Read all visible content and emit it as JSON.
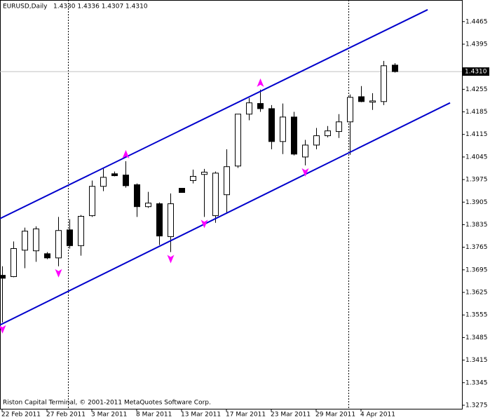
{
  "chart_data": {
    "type": "candlestick",
    "symbol": "EURUSD,Daily",
    "info": "1.4330 1.4336 1.4307 1.4310",
    "footer": "Riston Capital Terminal, © 2001-2011 MetaQuotes Software Corp.",
    "categories": [
      "22 Feb 2011",
      null,
      null,
      null,
      "27 Feb 2011",
      null,
      null,
      null,
      "3 Mar 2011",
      null,
      null,
      null,
      "8 Mar 2011",
      null,
      null,
      null,
      "13 Mar 2011",
      null,
      null,
      null,
      "17 Mar 2011",
      null,
      null,
      null,
      "23 Mar 2011",
      null,
      null,
      null,
      "29 Mar 2011",
      null,
      null,
      null,
      "4 Apr 2011",
      null,
      null,
      null
    ],
    "open": [
      1.3678,
      1.3674,
      1.3756,
      1.3754,
      1.3745,
      1.3732,
      1.3819,
      1.377,
      1.3863,
      1.3954,
      1.3993,
      1.3989,
      1.3959,
      1.3891,
      1.39,
      1.3798,
      1.3948,
      1.3972,
      1.3991,
      1.3863,
      1.3928,
      1.4017,
      1.4178,
      1.4211,
      1.4195,
      1.4093,
      1.4169,
      1.4045,
      1.4082,
      1.4111,
      1.4124,
      1.4154,
      1.4232,
      1.4215,
      1.4217,
      1.433
    ],
    "high": [
      1.3706,
      1.3783,
      1.3826,
      1.383,
      1.375,
      1.3859,
      1.3852,
      1.3865,
      1.3972,
      1.4011,
      1.4,
      1.4032,
      1.3963,
      1.3937,
      1.3904,
      1.3932,
      1.3948,
      1.4006,
      1.4008,
      1.4,
      1.4069,
      1.4178,
      1.4228,
      1.4254,
      1.4206,
      1.4211,
      1.4185,
      1.4098,
      1.4135,
      1.4141,
      1.4178,
      1.4239,
      1.4265,
      1.4243,
      1.4343,
      1.4336
    ],
    "low": [
      1.3532,
      1.3672,
      1.37,
      1.372,
      1.3728,
      1.3706,
      1.3761,
      1.3739,
      1.3859,
      1.3939,
      1.3985,
      1.395,
      1.3859,
      1.3887,
      1.3772,
      1.375,
      1.3935,
      1.3963,
      1.3859,
      1.3841,
      1.3869,
      1.4011,
      1.4159,
      1.4185,
      1.4069,
      1.4054,
      1.405,
      1.4019,
      1.4069,
      1.4106,
      1.4104,
      1.4052,
      1.4215,
      1.4191,
      1.4206,
      1.4307
    ],
    "close": [
      1.3669,
      1.3761,
      1.3815,
      1.3822,
      1.3732,
      1.3817,
      1.377,
      1.3861,
      1.3954,
      1.3982,
      1.3987,
      1.3956,
      1.3891,
      1.3902,
      1.38,
      1.39,
      1.3935,
      1.3985,
      1.3998,
      1.3995,
      1.4015,
      1.4178,
      1.4213,
      1.4195,
      1.4093,
      1.4169,
      1.4054,
      1.4082,
      1.4111,
      1.4126,
      1.4154,
      1.423,
      1.4217,
      1.4219,
      1.4328,
      1.431
    ],
    "ylim": [
      1.3264,
      1.4532
    ],
    "yticks": [
      1.4465,
      1.4395,
      1.4255,
      1.4185,
      1.4115,
      1.4045,
      1.3975,
      1.3905,
      1.3835,
      1.3765,
      1.3695,
      1.3625,
      1.3555,
      1.3485,
      1.3415,
      1.3345,
      1.3275
    ],
    "current_price": {
      "value": 1.431,
      "label": "1.4310"
    },
    "separators": [
      6,
      31
    ],
    "fractals_up": [
      11,
      23
    ],
    "fractals_down": [
      0,
      5,
      15,
      18,
      27
    ],
    "fractal_color": "#ff00ff",
    "channel_color": "#0000cc",
    "channel": [
      {
        "x": [
          -0.19,
          37.94
        ],
        "y": [
          1.3854,
          1.4502
        ]
      },
      {
        "x": [
          -0.19,
          39.94
        ],
        "y": [
          1.3524,
          1.4213
        ]
      }
    ]
  }
}
